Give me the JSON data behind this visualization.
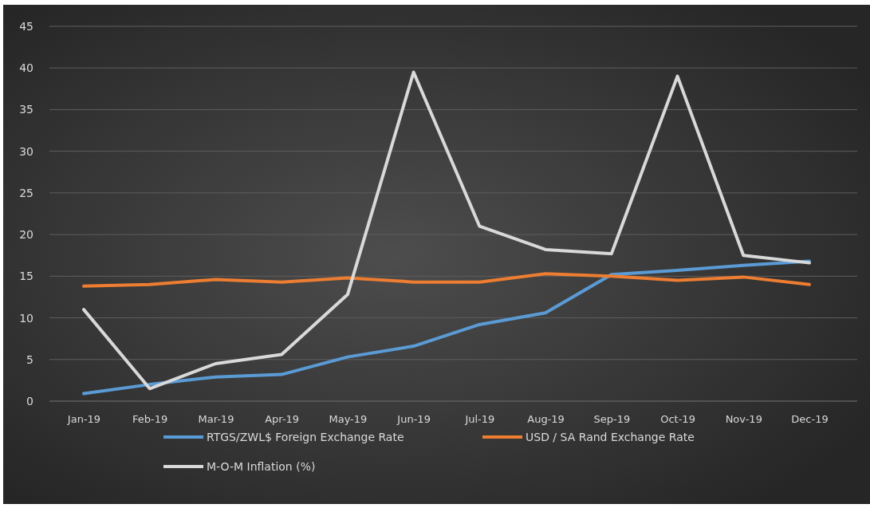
{
  "chart_data": {
    "type": "line",
    "categories": [
      "Jan-19",
      "Feb-19",
      "Mar-19",
      "Apr-19",
      "May-19",
      "Jun-19",
      "Jul-19",
      "Aug-19",
      "Sep-19",
      "Oct-19",
      "Nov-19",
      "Dec-19"
    ],
    "series": [
      {
        "name": "RTGS/ZWL$ Foreign Exchange Rate",
        "color": "#5b9bd5",
        "values": [
          0.9,
          2,
          2.9,
          3.2,
          5.3,
          6.6,
          9.2,
          10.6,
          15.2,
          15.7,
          16.3,
          16.8
        ]
      },
      {
        "name": "USD / SA Rand Exchange Rate",
        "color": "#ed7d31",
        "values": [
          13.8,
          14,
          14.6,
          14.3,
          14.8,
          14.3,
          14.3,
          15.3,
          15,
          14.5,
          14.9,
          14
        ]
      },
      {
        "name": "M-O-M Inflation (%)",
        "color": "#d9d9d9",
        "values": [
          11,
          1.5,
          4.5,
          5.6,
          12.8,
          39.5,
          21,
          18.2,
          17.7,
          39,
          17.5,
          16.6
        ]
      }
    ],
    "ylim": [
      0,
      45
    ],
    "yticks": [
      0,
      5,
      10,
      15,
      20,
      25,
      30,
      35,
      40,
      45
    ],
    "grid": "y",
    "legend": "bottom",
    "marker": "none",
    "line_style": "solid"
  }
}
